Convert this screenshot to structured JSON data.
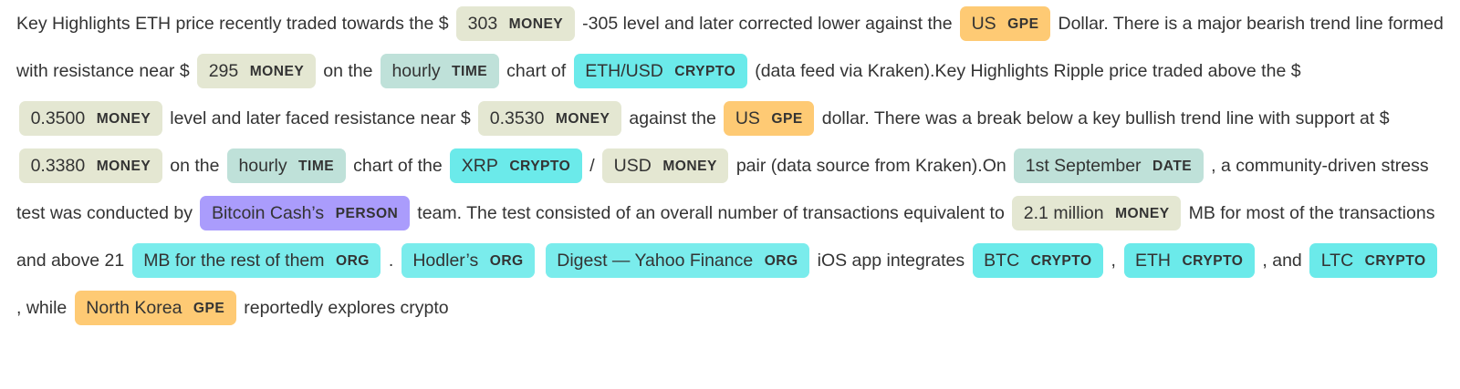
{
  "colors": {
    "MONEY": "#e4e7d2",
    "GPE": "#feca74",
    "TIME": "#bfe1d9",
    "DATE": "#bfe1d9",
    "CRYPTO": "#6beaea",
    "ORG": "#7aecec",
    "PERSON": "#aa9cfc"
  },
  "segments": [
    {
      "t": "Key Highlights ETH price recently traded towards the $ "
    },
    {
      "e": "303",
      "label": "MONEY"
    },
    {
      "t": " -305 level and later corrected lower against the "
    },
    {
      "e": "US",
      "label": "GPE"
    },
    {
      "t": " Dollar. There is a major bearish trend line formed with resistance near $ "
    },
    {
      "e": "295",
      "label": "MONEY"
    },
    {
      "t": " on the "
    },
    {
      "e": "hourly",
      "label": "TIME"
    },
    {
      "t": " chart of "
    },
    {
      "e": "ETH/USD",
      "label": "CRYPTO"
    },
    {
      "t": " (data feed via Kraken).Key Highlights Ripple price traded above the $ "
    },
    {
      "e": "0.3500",
      "label": "MONEY"
    },
    {
      "t": " level and later faced resistance near $ "
    },
    {
      "e": "0.3530",
      "label": "MONEY"
    },
    {
      "t": " against the "
    },
    {
      "e": "US",
      "label": "GPE"
    },
    {
      "t": " dollar. There was a break below a key bullish trend line with support at $ "
    },
    {
      "e": "0.3380",
      "label": "MONEY"
    },
    {
      "t": " on the "
    },
    {
      "e": "hourly",
      "label": "TIME"
    },
    {
      "t": " chart of the "
    },
    {
      "e": "XRP",
      "label": "CRYPTO"
    },
    {
      "t": " / "
    },
    {
      "e": "USD",
      "label": "MONEY"
    },
    {
      "t": " pair (data source from Kraken).On "
    },
    {
      "e": "1st September",
      "label": "DATE"
    },
    {
      "t": " , a community-driven stress test was conducted by "
    },
    {
      "e": "Bitcoin Cash’s",
      "label": "PERSON"
    },
    {
      "t": " team. The test consisted of an overall number of transactions equivalent to "
    },
    {
      "e": "2.1 million",
      "label": "MONEY"
    },
    {
      "t": " MB for most of the transactions and above 21 "
    },
    {
      "e": "MB for the rest of them",
      "label": "ORG"
    },
    {
      "t": " . "
    },
    {
      "e": "Hodler’s",
      "label": "ORG"
    },
    {
      "t": " "
    },
    {
      "e": "Digest — Yahoo Finance",
      "label": "ORG"
    },
    {
      "t": " iOS app integrates "
    },
    {
      "e": "BTC",
      "label": "CRYPTO"
    },
    {
      "t": " , "
    },
    {
      "e": "ETH",
      "label": "CRYPTO"
    },
    {
      "t": " , and "
    },
    {
      "e": "LTC",
      "label": "CRYPTO"
    },
    {
      "t": " , while "
    },
    {
      "e": "North Korea",
      "label": "GPE"
    },
    {
      "t": " reportedly explores crypto"
    }
  ]
}
